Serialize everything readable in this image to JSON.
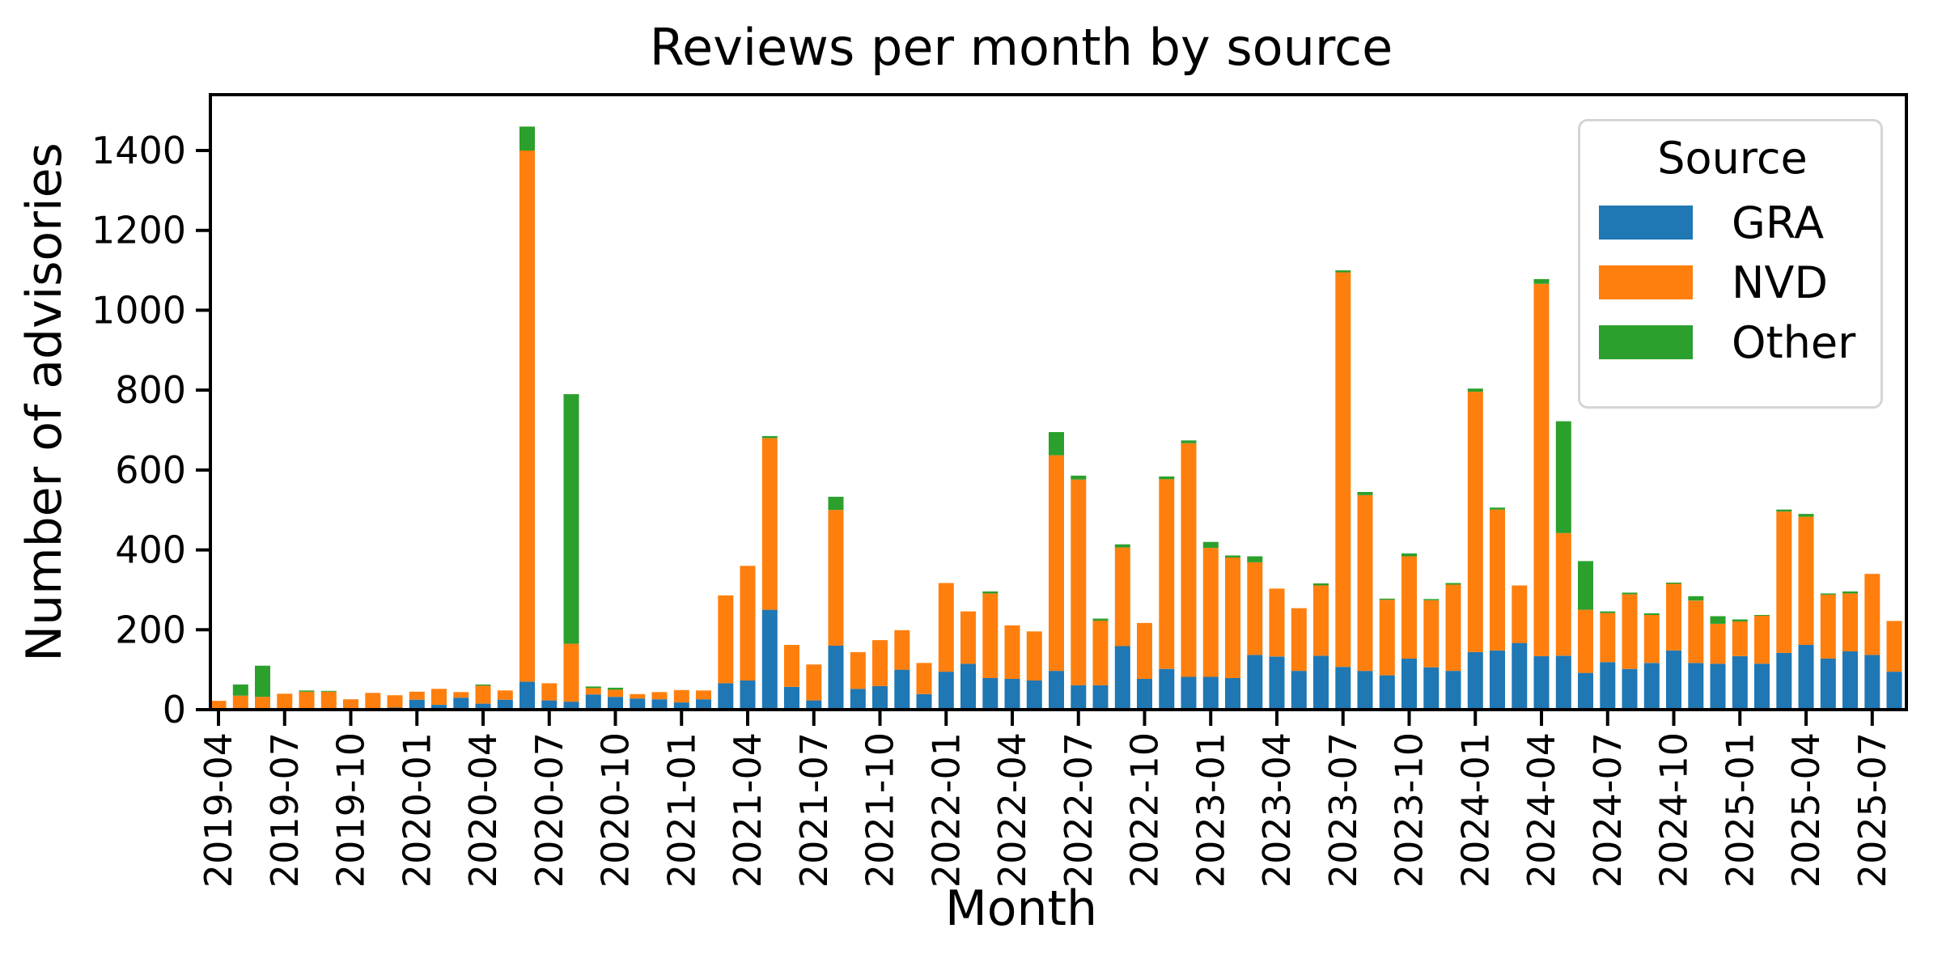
{
  "chart_data": {
    "type": "bar",
    "stacked": true,
    "title": "Reviews per month by source",
    "xlabel": "Month",
    "ylabel": "Number of advisories",
    "legend_title": "Source",
    "legend_position": "upper right",
    "grid": false,
    "ylim": [
      0,
      1540
    ],
    "yticks": [
      0,
      200,
      400,
      600,
      800,
      1000,
      1200,
      1400
    ],
    "xtick_every": 3,
    "categories": [
      "2019-04",
      "2019-05",
      "2019-06",
      "2019-07",
      "2019-08",
      "2019-09",
      "2019-10",
      "2019-11",
      "2019-12",
      "2020-01",
      "2020-02",
      "2020-03",
      "2020-04",
      "2020-05",
      "2020-06",
      "2020-07",
      "2020-08",
      "2020-09",
      "2020-10",
      "2020-11",
      "2020-12",
      "2021-01",
      "2021-02",
      "2021-03",
      "2021-04",
      "2021-05",
      "2021-06",
      "2021-07",
      "2021-08",
      "2021-09",
      "2021-10",
      "2021-11",
      "2021-12",
      "2022-01",
      "2022-02",
      "2022-03",
      "2022-04",
      "2022-05",
      "2022-06",
      "2022-07",
      "2022-08",
      "2022-09",
      "2022-10",
      "2022-11",
      "2022-12",
      "2023-01",
      "2023-02",
      "2023-03",
      "2023-04",
      "2023-05",
      "2023-06",
      "2023-07",
      "2023-08",
      "2023-09",
      "2023-10",
      "2023-11",
      "2023-12",
      "2024-01",
      "2024-02",
      "2024-03",
      "2024-04",
      "2024-05",
      "2024-06",
      "2024-07",
      "2024-08",
      "2024-09",
      "2024-10",
      "2024-11",
      "2024-12",
      "2025-01",
      "2025-02",
      "2025-03",
      "2025-04",
      "2025-05",
      "2025-06",
      "2025-07",
      "2025-08"
    ],
    "series": [
      {
        "name": "GRA",
        "color": "#1f77b4",
        "values": [
          0,
          0,
          0,
          0,
          0,
          0,
          0,
          0,
          5,
          25,
          12,
          30,
          15,
          25,
          70,
          23,
          20,
          38,
          32,
          28,
          26,
          18,
          26,
          66,
          73,
          250,
          57,
          23,
          160,
          52,
          59,
          100,
          39,
          95,
          115,
          79,
          77,
          73,
          97,
          61,
          61,
          159,
          77,
          102,
          82,
          82,
          79,
          137,
          133,
          97,
          135,
          107,
          97,
          86,
          128,
          106,
          97,
          144,
          148,
          167,
          134,
          135,
          92,
          119,
          102,
          117,
          148,
          117,
          115,
          134,
          115,
          142,
          162,
          128,
          146,
          137,
          95
        ]
      },
      {
        "name": "NVD",
        "color": "#ff7f0e",
        "values": [
          22,
          35,
          32,
          40,
          45,
          45,
          26,
          42,
          31,
          20,
          40,
          14,
          45,
          23,
          1330,
          43,
          145,
          16,
          18,
          11,
          18,
          31,
          22,
          220,
          287,
          430,
          105,
          90,
          340,
          92,
          115,
          99,
          78,
          222,
          131,
          212,
          134,
          123,
          540,
          515,
          162,
          247,
          140,
          475,
          585,
          323,
          302,
          232,
          170,
          157,
          176,
          988,
          440,
          189,
          256,
          168,
          216,
          652,
          353,
          144,
          932,
          307,
          158,
          123,
          187,
          120,
          167,
          156,
          100,
          87,
          120,
          354,
          321,
          160,
          145,
          203,
          127
        ]
      },
      {
        "name": "Other",
        "color": "#2ca02c",
        "values": [
          0,
          28,
          78,
          0,
          3,
          2,
          0,
          0,
          0,
          0,
          0,
          0,
          3,
          0,
          60,
          0,
          625,
          4,
          5,
          0,
          0,
          0,
          0,
          0,
          0,
          5,
          0,
          0,
          33,
          0,
          0,
          0,
          0,
          0,
          0,
          5,
          0,
          0,
          58,
          10,
          5,
          8,
          0,
          7,
          7,
          15,
          5,
          15,
          0,
          0,
          5,
          5,
          8,
          3,
          7,
          3,
          4,
          8,
          5,
          0,
          12,
          280,
          122,
          4,
          4,
          4,
          3,
          11,
          19,
          5,
          2,
          5,
          7,
          3,
          5,
          0,
          0
        ]
      }
    ]
  }
}
